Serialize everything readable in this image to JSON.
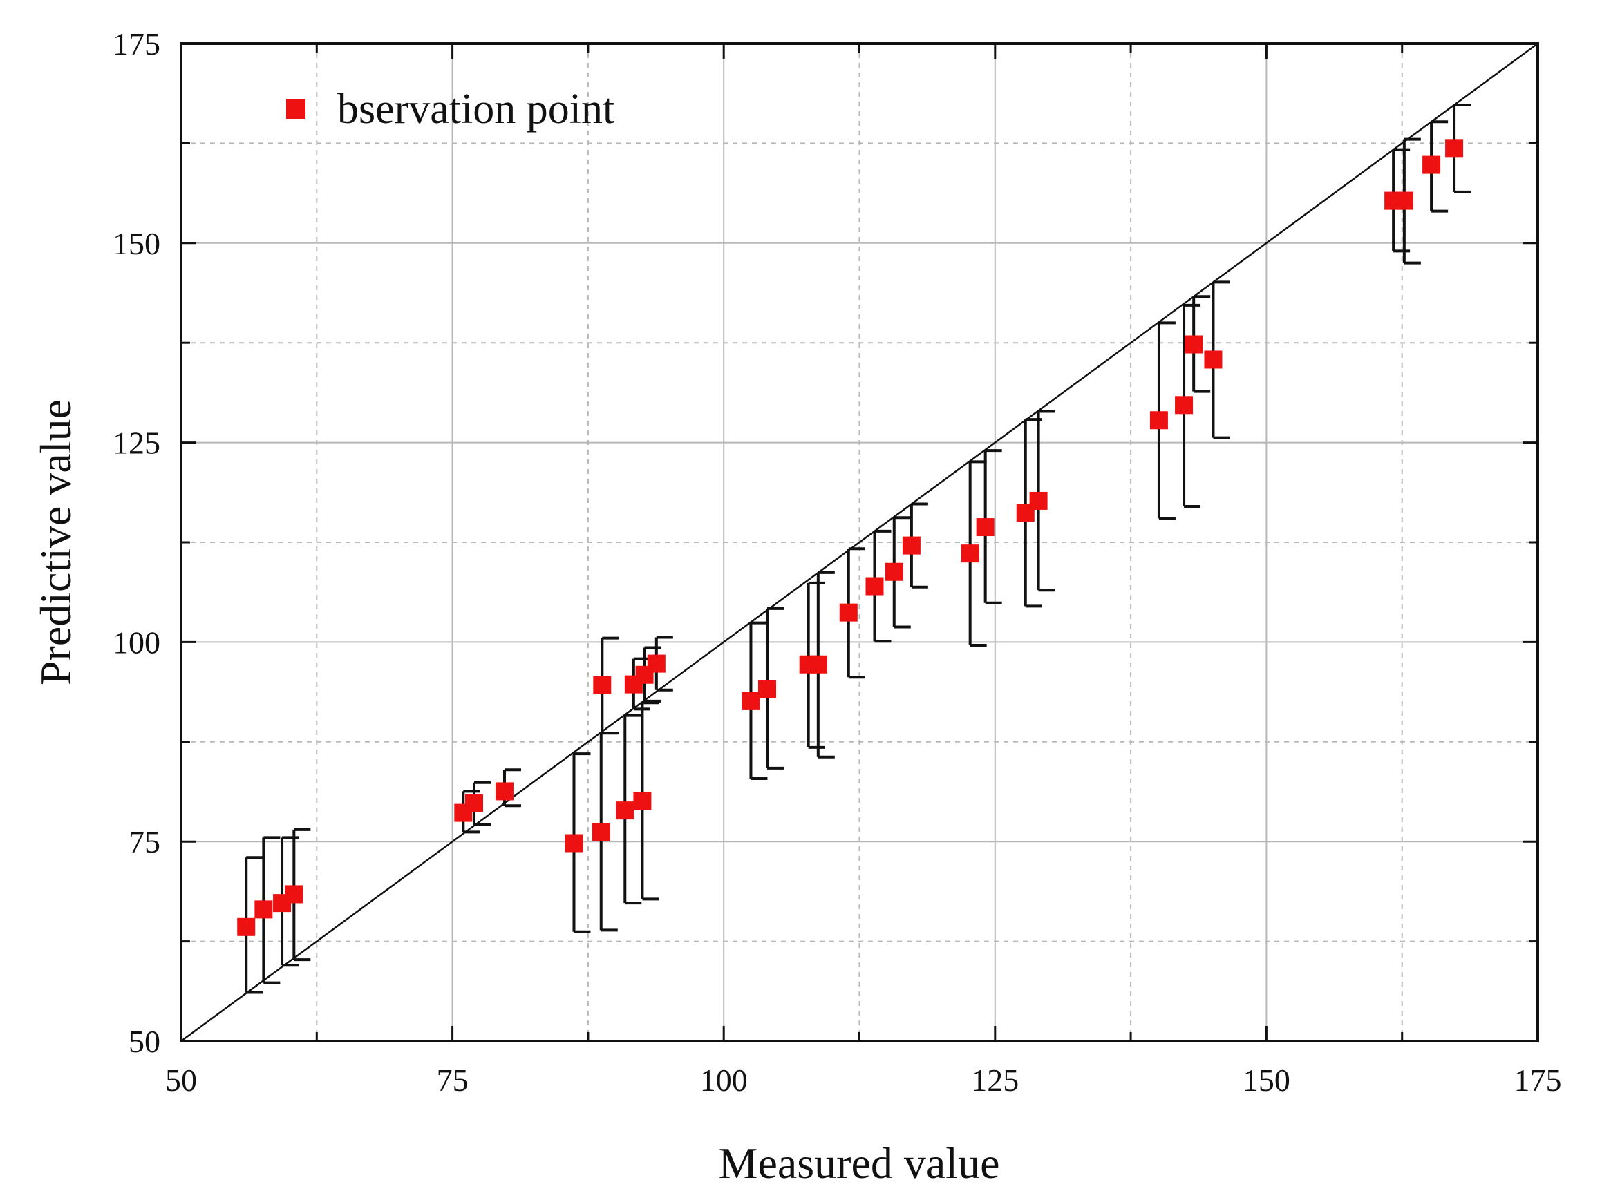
{
  "chart_data": {
    "type": "scatter",
    "title": "",
    "xlabel": "Measured value",
    "ylabel": "Predictive value",
    "xlim": [
      50,
      175
    ],
    "ylim": [
      50,
      175
    ],
    "xticks": [
      50,
      75,
      100,
      125,
      150,
      175
    ],
    "yticks": [
      50,
      75,
      100,
      125,
      150,
      175
    ],
    "grid": true,
    "legend": {
      "label": "bservation point",
      "position": "top-left"
    },
    "reference_line": {
      "from": [
        50,
        50
      ],
      "to": [
        175,
        175
      ]
    },
    "colors": {
      "marker": "#ee1111",
      "errorbar": "#111111",
      "grid": "#b8b8b8",
      "axes": "#111111"
    },
    "series": [
      {
        "name": "bservation point",
        "points": [
          {
            "x": 56.0,
            "y": 64.3,
            "low": 56.1,
            "high": 73.0
          },
          {
            "x": 57.6,
            "y": 66.5,
            "low": 57.3,
            "high": 75.5
          },
          {
            "x": 59.3,
            "y": 67.3,
            "low": 59.5,
            "high": 75.5
          },
          {
            "x": 60.4,
            "y": 68.4,
            "low": 60.2,
            "high": 76.5
          },
          {
            "x": 76.0,
            "y": 78.6,
            "low": 76.2,
            "high": 81.3
          },
          {
            "x": 77.0,
            "y": 79.8,
            "low": 77.1,
            "high": 82.4
          },
          {
            "x": 79.8,
            "y": 81.3,
            "low": 79.5,
            "high": 84.0
          },
          {
            "x": 86.2,
            "y": 74.8,
            "low": 63.7,
            "high": 86.0
          },
          {
            "x": 88.7,
            "y": 76.2,
            "low": 63.9,
            "high": 88.6
          },
          {
            "x": 88.8,
            "y": 94.6,
            "low": 88.6,
            "high": 100.5
          },
          {
            "x": 90.9,
            "y": 78.9,
            "low": 67.3,
            "high": 90.8
          },
          {
            "x": 91.7,
            "y": 94.7,
            "low": 91.6,
            "high": 97.9
          },
          {
            "x": 92.5,
            "y": 80.1,
            "low": 67.8,
            "high": 92.4
          },
          {
            "x": 92.7,
            "y": 95.9,
            "low": 92.6,
            "high": 99.3
          },
          {
            "x": 93.8,
            "y": 97.3,
            "low": 94.0,
            "high": 100.6
          },
          {
            "x": 102.5,
            "y": 92.6,
            "low": 82.9,
            "high": 102.4
          },
          {
            "x": 104.0,
            "y": 94.1,
            "low": 84.2,
            "high": 104.2
          },
          {
            "x": 107.8,
            "y": 97.2,
            "low": 86.8,
            "high": 107.4
          },
          {
            "x": 108.7,
            "y": 97.2,
            "low": 85.6,
            "high": 108.7
          },
          {
            "x": 111.5,
            "y": 103.7,
            "low": 95.6,
            "high": 111.7
          },
          {
            "x": 113.9,
            "y": 107.0,
            "low": 100.1,
            "high": 113.9
          },
          {
            "x": 115.7,
            "y": 108.8,
            "low": 101.9,
            "high": 115.6
          },
          {
            "x": 117.3,
            "y": 112.1,
            "low": 106.9,
            "high": 117.3
          },
          {
            "x": 122.7,
            "y": 111.1,
            "low": 99.6,
            "high": 122.6
          },
          {
            "x": 124.1,
            "y": 114.4,
            "low": 104.9,
            "high": 124.0
          },
          {
            "x": 127.8,
            "y": 116.2,
            "low": 104.5,
            "high": 127.9
          },
          {
            "x": 129.0,
            "y": 117.7,
            "low": 106.5,
            "high": 128.9
          },
          {
            "x": 140.1,
            "y": 127.8,
            "low": 115.5,
            "high": 140.0
          },
          {
            "x": 142.4,
            "y": 129.7,
            "low": 117.0,
            "high": 142.2
          },
          {
            "x": 143.3,
            "y": 137.3,
            "low": 131.4,
            "high": 143.3
          },
          {
            "x": 145.1,
            "y": 135.4,
            "low": 125.6,
            "high": 145.1
          },
          {
            "x": 161.7,
            "y": 155.3,
            "low": 149.0,
            "high": 161.7
          },
          {
            "x": 162.7,
            "y": 155.3,
            "low": 147.5,
            "high": 163.0
          },
          {
            "x": 165.2,
            "y": 159.8,
            "low": 154.0,
            "high": 165.2
          },
          {
            "x": 167.3,
            "y": 161.9,
            "low": 156.4,
            "high": 167.3
          }
        ]
      }
    ]
  }
}
